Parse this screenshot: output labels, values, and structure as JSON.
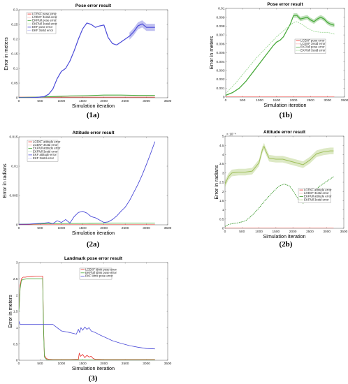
{
  "chart_data": [
    {
      "id": "1a",
      "type": "line",
      "caption": "(1a)",
      "title": "Pose error result",
      "xlabel": "Simulation iteration",
      "ylabel": "Error in meters",
      "xlim": [
        0,
        3500
      ],
      "ylim": [
        0,
        0.3
      ],
      "xticks": [
        0,
        500,
        1000,
        1500,
        2000,
        2500,
        3000,
        3500
      ],
      "yticks": [
        0,
        0.05,
        0.1,
        0.15,
        0.2,
        0.25,
        0.3
      ],
      "ytick_labels": [
        "0",
        "0.05",
        "0.1",
        "0.15",
        "0.2",
        "0.25",
        "0.3"
      ],
      "legend_position": "top-left",
      "legend": [
        "LCEKF pose error",
        "LCEKF 3sstd error",
        "EKFfull pose error",
        "EKFfull 3sstd error",
        "EKF pose error",
        "EKF 3sstd error"
      ],
      "series": [
        {
          "name": "LCEKF pose error",
          "color": "#e8302b",
          "width": 0.7,
          "x": [
            0,
            3200
          ],
          "y": [
            0.002,
            0.002
          ]
        },
        {
          "name": "EKFfull pose error",
          "color": "#4aaa3c",
          "width": 1.1,
          "x": [
            0,
            400,
            800,
            1200,
            1600,
            2000,
            2400,
            2800,
            3200
          ],
          "y": [
            0.001,
            0.002,
            0.004,
            0.006,
            0.007,
            0.009,
            0.009,
            0.008,
            0.008
          ]
        },
        {
          "name": "EKF pose error",
          "color": "#4a4ad8",
          "width": 1.2,
          "band": 0.012,
          "band_from": 2600,
          "x": [
            0,
            200,
            400,
            600,
            700,
            800,
            900,
            1000,
            1100,
            1200,
            1300,
            1400,
            1500,
            1600,
            1700,
            1800,
            1900,
            2000,
            2100,
            2200,
            2300,
            2400,
            2500,
            2600,
            2700,
            2800,
            2900,
            3000,
            3100,
            3200
          ],
          "y": [
            0,
            0,
            0.001,
            0.004,
            0.012,
            0.03,
            0.065,
            0.09,
            0.1,
            0.125,
            0.16,
            0.2,
            0.235,
            0.255,
            0.25,
            0.24,
            0.245,
            0.248,
            0.205,
            0.185,
            0.18,
            0.19,
            0.2,
            0.21,
            0.225,
            0.245,
            0.252,
            0.24,
            0.24,
            0.24
          ]
        }
      ]
    },
    {
      "id": "1b",
      "type": "line",
      "caption": "(1b)",
      "title": "Pose error result",
      "xlabel": "Simulation iteration",
      "ylabel": "Error in meters",
      "xlim": [
        0,
        3500
      ],
      "ylim": [
        0,
        0.01
      ],
      "xticks": [
        0,
        500,
        1000,
        1500,
        2000,
        2500,
        3000,
        3500
      ],
      "yticks": [
        0,
        0.001,
        0.002,
        0.003,
        0.004,
        0.005,
        0.006,
        0.007,
        0.008,
        0.009,
        0.01
      ],
      "ytick_labels": [
        "0",
        "0.001",
        "0.002",
        "0.003",
        "0.004",
        "0.005",
        "0.006",
        "0.007",
        "0.008",
        "0.009",
        "0.01"
      ],
      "legend_position": "middle-right",
      "legend": [
        "LCEKF pose error",
        "LCEKF 3sstd error",
        "EKFfull pose error",
        "EKFfull 3sstd error"
      ],
      "series": [
        {
          "name": "LCEKF pose error",
          "color": "#e8302b",
          "width": 0.6,
          "x": [
            0,
            3200
          ],
          "y": [
            2e-05,
            2e-05
          ]
        },
        {
          "name": "EKFfull pose error",
          "color": "#4aaa3c",
          "width": 1.3,
          "band": 0.00025,
          "band_from": 2000,
          "x": [
            0,
            200,
            400,
            600,
            800,
            1000,
            1200,
            1400,
            1500,
            1600,
            1700,
            1800,
            1900,
            2000,
            2100,
            2200,
            2300,
            2400,
            2500,
            2600,
            2700,
            2800,
            2900,
            3000,
            3100,
            3200
          ],
          "y": [
            0.0002,
            0.0005,
            0.001,
            0.0018,
            0.0028,
            0.0038,
            0.0048,
            0.0058,
            0.0062,
            0.0064,
            0.0068,
            0.0075,
            0.0082,
            0.0092,
            0.0092,
            0.0088,
            0.0089,
            0.009,
            0.0087,
            0.0085,
            0.0088,
            0.009,
            0.0088,
            0.0084,
            0.0082,
            0.0081
          ]
        },
        {
          "name": "EKFfull 3sstd error",
          "color": "#9ed896",
          "width": 0.9,
          "dash": "2,1.2",
          "x": [
            0,
            300,
            600,
            900,
            1200,
            1500,
            1800,
            2000,
            2100,
            2200,
            2400,
            2600,
            2800,
            3000,
            3200
          ],
          "y": [
            0.0004,
            0.0016,
            0.003,
            0.0044,
            0.0056,
            0.0068,
            0.0078,
            0.0084,
            0.0085,
            0.0083,
            0.0078,
            0.0074,
            0.0073,
            0.0073,
            0.0071
          ]
        }
      ]
    },
    {
      "id": "2a",
      "type": "line",
      "caption": "(2a)",
      "title": "Attitude error result",
      "xlabel": "Simulation iteration",
      "ylabel": "Error in radians",
      "xlim": [
        0,
        3500
      ],
      "ylim": [
        0,
        0.015
      ],
      "xticks": [
        0,
        500,
        1000,
        1500,
        2000,
        2500,
        3000,
        3500
      ],
      "yticks": [
        0,
        0.005,
        0.01,
        0.015
      ],
      "ytick_labels": [
        "0",
        "0.005",
        "0.01",
        "0.015"
      ],
      "legend_position": "top-left",
      "legend": [
        "LCEKF attitude error",
        "LCEKF 3sstd error",
        "EKFfull attitude error",
        "EKFfull 3sstd error",
        "EKF attitude error",
        "EKF 3sstd error"
      ],
      "series": [
        {
          "name": "LCEKF attitude error",
          "color": "#e8302b",
          "width": 0.6,
          "x": [
            0,
            3200
          ],
          "y": [
            3e-05,
            3e-05
          ]
        },
        {
          "name": "EKFfull attitude error",
          "color": "#4aaa3c",
          "width": 0.9,
          "x": [
            0,
            800,
            1600,
            2400,
            3200
          ],
          "y": [
            0.0001,
            0.0002,
            0.00025,
            0.0003,
            0.0003
          ]
        },
        {
          "name": "EKF attitude error",
          "color": "#4a4ad8",
          "width": 0.9,
          "x": [
            0,
            200,
            400,
            600,
            700,
            800,
            900,
            1000,
            1100,
            1200,
            1300,
            1400,
            1500,
            1600,
            1700,
            1800,
            1900,
            2000,
            2100,
            2200,
            2300,
            2400,
            2500,
            2600,
            2700,
            2800,
            2900,
            3000,
            3100,
            3200
          ],
          "y": [
            0.0001,
            0.0001,
            0.0002,
            0.0003,
            0.0004,
            0.0002,
            0.0007,
            0.0004,
            0.0009,
            0.0003,
            0.0014,
            0.0021,
            0.0023,
            0.002,
            0.0014,
            0.0012,
            0.0008,
            0.0004,
            0.0005,
            0.0009,
            0.0015,
            0.0023,
            0.003,
            0.0041,
            0.0055,
            0.0069,
            0.0085,
            0.0103,
            0.0122,
            0.0142
          ]
        }
      ]
    },
    {
      "id": "2b",
      "type": "line",
      "caption": "(2b)",
      "title": "Attitude error result",
      "xlabel": "Simulation iteration",
      "ylabel": "Error in radians",
      "y_exponent": "× 10⁻⁴",
      "xlim": [
        0,
        3500
      ],
      "ylim": [
        0,
        5
      ],
      "xticks": [
        0,
        500,
        1000,
        1500,
        2000,
        2500,
        3000,
        3500
      ],
      "yticks": [
        0,
        0.5,
        1,
        1.5,
        2,
        2.5,
        3,
        3.5,
        4,
        4.5,
        5
      ],
      "ytick_labels": [
        "0",
        "0.5",
        "1",
        "1.5",
        "2",
        "2.5",
        "3",
        "3.5",
        "4",
        "4.5",
        "5"
      ],
      "legend_position": "bottom-right",
      "legend": [
        "LCEKF attitude error",
        "LCEKF 3sstd error",
        "EKFfull attitude error",
        "EKFfull 3sstd error"
      ],
      "series": [
        {
          "name": "LCEKF attitude error",
          "color": "#e8302b",
          "width": 0.6,
          "x": [
            0,
            3200
          ],
          "y": [
            0.01,
            0.01
          ]
        },
        {
          "name": "EKFfull 3sstd error",
          "color": "#9fbf5a",
          "width": 1.0,
          "band": 0.18,
          "band_from": 0,
          "x": [
            0,
            100,
            200,
            400,
            600,
            800,
            1000,
            1100,
            1150,
            1200,
            1300,
            1500,
            1700,
            1900,
            2100,
            2300,
            2500,
            2700,
            2900,
            3100,
            3200
          ],
          "y": [
            2.4,
            2.8,
            3.0,
            3.05,
            3.05,
            3.1,
            3.55,
            4.25,
            4.45,
            4.2,
            3.8,
            3.75,
            3.75,
            3.65,
            3.55,
            3.45,
            3.7,
            4.05,
            4.15,
            4.2,
            4.2
          ]
        },
        {
          "name": "EKFfull attitude error",
          "color": "#3c9a2e",
          "width": 0.9,
          "dash": "1.6,1",
          "x": [
            0,
            100,
            200,
            400,
            600,
            800,
            1000,
            1200,
            1400,
            1600,
            1750,
            1900,
            2000,
            2100,
            2200,
            2300,
            2400,
            2600,
            2800,
            3000,
            3200
          ],
          "y": [
            0.1,
            0.2,
            0.25,
            0.3,
            0.4,
            0.7,
            1.1,
            1.55,
            1.95,
            2.3,
            2.4,
            2.3,
            2.05,
            1.75,
            1.45,
            1.35,
            1.6,
            2.0,
            2.3,
            2.55,
            2.8
          ]
        }
      ]
    },
    {
      "id": "3",
      "type": "line",
      "caption": "(3)",
      "title": "Landmark pose error result",
      "xlabel": "Simulation iteration",
      "ylabel": "Error in meters",
      "xlim": [
        0,
        3500
      ],
      "ylim": [
        0,
        3
      ],
      "xticks": [
        0,
        500,
        1000,
        1500,
        2000,
        2500,
        3000,
        3500
      ],
      "yticks": [
        0,
        0.5,
        1,
        1.5,
        2,
        2.5,
        3
      ],
      "ytick_labels": [
        "0",
        "0.5",
        "1",
        "1.5",
        "2",
        "2.5",
        "3"
      ],
      "legend_position": "top-right",
      "legend": [
        "LCEKF ldmk pose error",
        "EKFfull ldmk pose error",
        "EKF ldmk pose error"
      ],
      "series": [
        {
          "name": "LCEKF ldmk pose error",
          "color": "#e8302b",
          "width": 0.8,
          "x": [
            0,
            30,
            60,
            100,
            150,
            200,
            300,
            400,
            500,
            560,
            580,
            600,
            650,
            700,
            800,
            1000,
            1200,
            1400,
            1420,
            1450,
            1500,
            1550,
            1600,
            1650,
            1700,
            1750,
            1800,
            2000,
            2500,
            3200
          ],
          "y": [
            1.5,
            2.3,
            2.5,
            2.55,
            2.55,
            2.56,
            2.57,
            2.58,
            2.58,
            2.58,
            1.0,
            0.15,
            0.05,
            0.03,
            0.02,
            0.02,
            0.02,
            0.03,
            0.22,
            0.12,
            0.18,
            0.08,
            0.15,
            0.1,
            0.12,
            0.05,
            0.03,
            0.02,
            0.02,
            0.02
          ]
        },
        {
          "name": "EKFfull ldmk pose error",
          "color": "#4aaa3c",
          "width": 0.8,
          "x": [
            0,
            30,
            60,
            100,
            200,
            300,
            400,
            500,
            560,
            580,
            600,
            650,
            700,
            1000,
            1500,
            2000,
            3200
          ],
          "y": [
            1.5,
            2.2,
            2.45,
            2.48,
            2.5,
            2.5,
            2.5,
            2.5,
            2.5,
            1.0,
            0.1,
            0.02,
            0.01,
            0.01,
            0.01,
            0.01,
            0.01
          ]
        },
        {
          "name": "EKF ldmk pose error",
          "color": "#4a4ad8",
          "width": 0.8,
          "x": [
            0,
            30,
            60,
            100,
            200,
            400,
            600,
            800,
            1000,
            1200,
            1300,
            1350,
            1400,
            1430,
            1460,
            1500,
            1550,
            1600,
            1650,
            1700,
            1800,
            1900,
            2000,
            2200,
            2400,
            2600,
            2800,
            3000,
            3200
          ],
          "y": [
            1.2,
            1.1,
            1.1,
            1.1,
            1.1,
            1.1,
            1.1,
            1.1,
            0.9,
            0.85,
            0.82,
            0.8,
            0.95,
            0.85,
            1.0,
            0.92,
            1.02,
            0.95,
            1.0,
            0.9,
            0.85,
            0.78,
            0.72,
            0.6,
            0.52,
            0.45,
            0.4,
            0.36,
            0.35
          ]
        }
      ]
    }
  ]
}
